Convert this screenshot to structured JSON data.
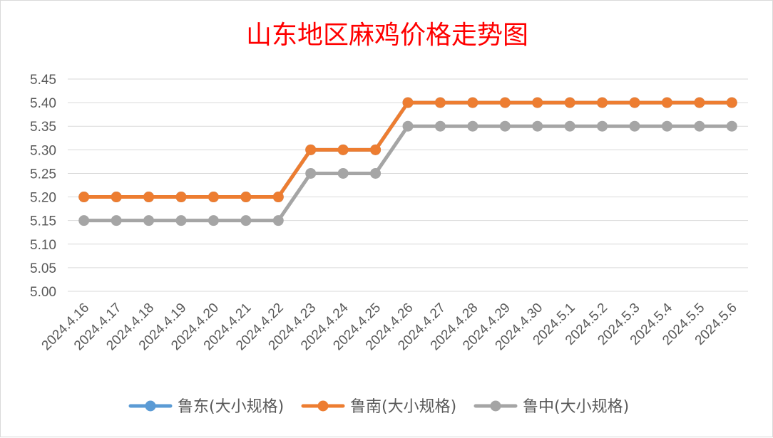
{
  "chart_data": {
    "type": "line",
    "title": "山东地区麻鸡价格走势图",
    "xlabel": "",
    "ylabel": "",
    "ylim": [
      5.0,
      5.45
    ],
    "yticks": [
      "5.00",
      "5.05",
      "5.10",
      "5.15",
      "5.20",
      "5.25",
      "5.30",
      "5.35",
      "5.40",
      "5.45"
    ],
    "grid": true,
    "legend_position": "bottom",
    "x": [
      "2024.4.16",
      "2024.4.17",
      "2024.4.18",
      "2024.4.19",
      "2024.4.20",
      "2024.4.21",
      "2024.4.22",
      "2024.4.23",
      "2024.4.24",
      "2024.4.25",
      "2024.4.26",
      "2024.4.27",
      "2024.4.28",
      "2024.4.29",
      "2024.4.30",
      "2024.5.1",
      "2024.5.2",
      "2024.5.3",
      "2024.5.4",
      "2024.5.5",
      "2024.5.6"
    ],
    "series": [
      {
        "name": "鲁东(大小规格)",
        "color": "#5b9bd5",
        "values": [
          5.2,
          5.2,
          5.2,
          5.2,
          5.2,
          5.2,
          5.2,
          5.3,
          5.3,
          5.3,
          5.4,
          5.4,
          5.4,
          5.4,
          5.4,
          5.4,
          5.4,
          5.4,
          5.4,
          5.4,
          5.4
        ]
      },
      {
        "name": "鲁南(大小规格)",
        "color": "#ed7d31",
        "values": [
          5.2,
          5.2,
          5.2,
          5.2,
          5.2,
          5.2,
          5.2,
          5.3,
          5.3,
          5.3,
          5.4,
          5.4,
          5.4,
          5.4,
          5.4,
          5.4,
          5.4,
          5.4,
          5.4,
          5.4,
          5.4
        ]
      },
      {
        "name": "鲁中(大小规格)",
        "color": "#a5a5a5",
        "values": [
          5.15,
          5.15,
          5.15,
          5.15,
          5.15,
          5.15,
          5.15,
          5.25,
          5.25,
          5.25,
          5.35,
          5.35,
          5.35,
          5.35,
          5.35,
          5.35,
          5.35,
          5.35,
          5.35,
          5.35,
          5.35
        ]
      }
    ]
  }
}
